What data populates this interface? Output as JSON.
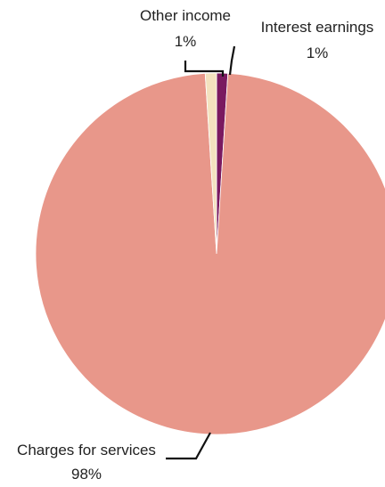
{
  "chart_data": {
    "type": "pie",
    "title": "",
    "legend": "none",
    "slices": [
      {
        "name": "Interest earnings",
        "value": 1,
        "label": "1%",
        "color": "#7a1a60"
      },
      {
        "name": "Charges for services",
        "value": 98,
        "label": "98%",
        "color": "#e8978a"
      },
      {
        "name": "Other income",
        "value": 1,
        "label": "1%",
        "color": "#f3e2bf"
      }
    ]
  }
}
